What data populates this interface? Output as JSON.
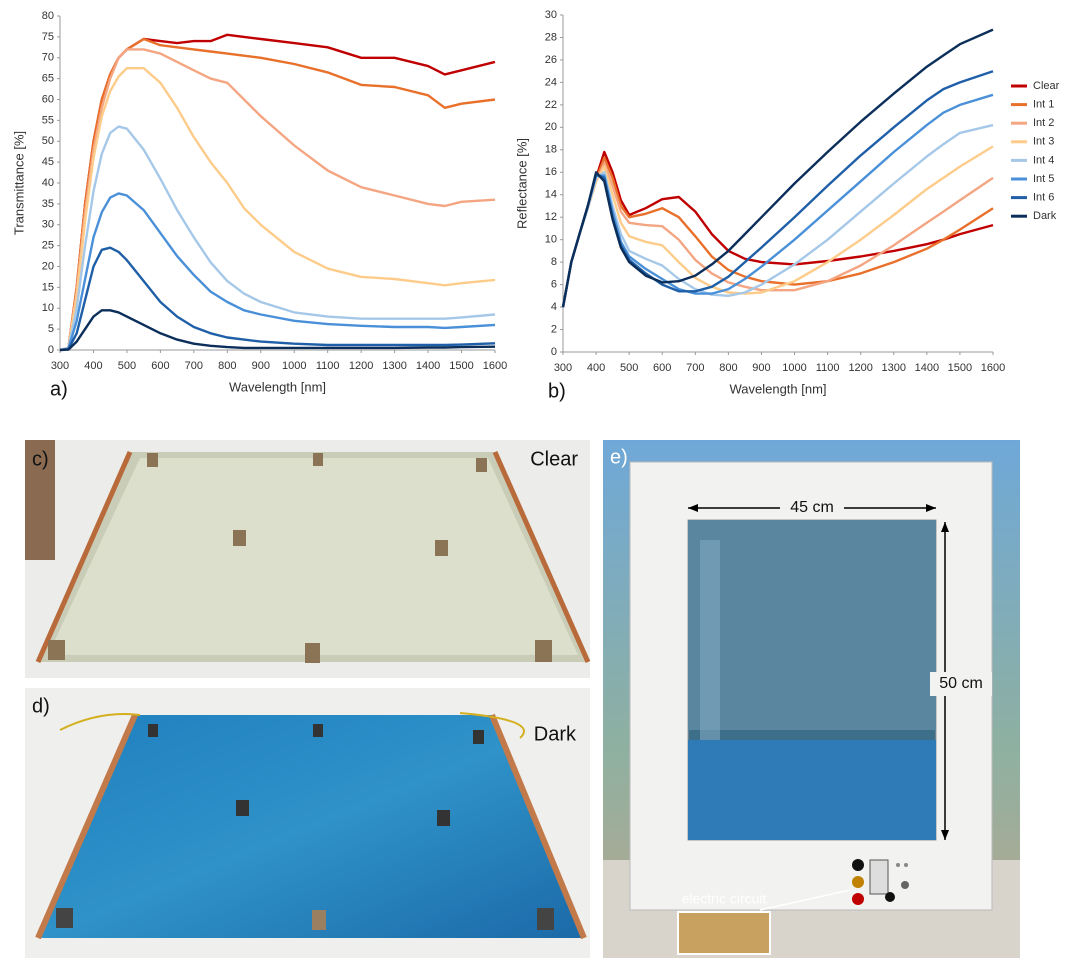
{
  "chart_data": [
    {
      "type": "line",
      "label": "a)",
      "ylabel": "Transmittance [%]",
      "xlabel": "Wavelength [nm]",
      "x": [
        300,
        325,
        350,
        375,
        400,
        425,
        450,
        475,
        500,
        550,
        600,
        650,
        700,
        750,
        800,
        850,
        900,
        1000,
        1100,
        1200,
        1300,
        1400,
        1450,
        1500,
        1600
      ],
      "xlim": [
        300,
        1600
      ],
      "xticks": [
        300,
        400,
        500,
        600,
        700,
        800,
        900,
        1000,
        1100,
        1200,
        1300,
        1400,
        1500,
        1600
      ],
      "ylim": [
        0,
        80
      ],
      "yticks": [
        0,
        5,
        10,
        15,
        20,
        25,
        30,
        35,
        40,
        45,
        50,
        55,
        60,
        65,
        70,
        75,
        80
      ],
      "grid": false,
      "series": [
        {
          "color": "#c00000",
          "values": [
            0,
            0.5,
            15,
            35,
            50,
            60,
            66,
            70,
            72,
            74.5,
            74,
            73.5,
            74,
            74,
            75.5,
            75,
            74.5,
            73.5,
            72.5,
            70,
            70,
            68,
            66,
            67,
            69
          ]
        },
        {
          "color": "#e8702a",
          "values": [
            0,
            0.5,
            15,
            35,
            50,
            60,
            66,
            70,
            72,
            74.5,
            73,
            72.5,
            72,
            71.5,
            71,
            70.5,
            70,
            68.5,
            66.5,
            63.5,
            63,
            61,
            58,
            59,
            60
          ]
        },
        {
          "color": "#f4a582",
          "values": [
            0,
            0.5,
            14,
            33,
            48,
            58,
            65,
            70,
            72,
            72,
            71,
            69,
            67,
            65,
            64,
            60,
            56,
            49,
            43,
            39,
            37,
            35,
            34.5,
            35.5,
            36
          ]
        },
        {
          "color": "#fdcc8a",
          "values": [
            0,
            0.5,
            13,
            31,
            46,
            56,
            62,
            65.5,
            67.5,
            67.5,
            64,
            58,
            51,
            45,
            40,
            34,
            30,
            23.5,
            19.5,
            17.5,
            17,
            16,
            15.5,
            16,
            16.8
          ]
        },
        {
          "color": "#a6c8e8",
          "values": [
            0,
            0.5,
            10,
            25,
            38,
            47,
            52,
            53.5,
            53,
            48,
            41,
            33.5,
            27,
            21,
            16.5,
            13.5,
            11.5,
            9,
            8,
            7.5,
            7.5,
            7.5,
            7.5,
            7.8,
            8.5
          ]
        },
        {
          "color": "#4a90d9",
          "values": [
            0,
            0.3,
            7,
            17,
            27,
            33,
            36.5,
            37.5,
            37,
            33.5,
            28,
            22.5,
            18,
            14,
            11.5,
            9.5,
            8.5,
            7,
            6.2,
            5.8,
            5.5,
            5.5,
            5.3,
            5.5,
            6
          ]
        },
        {
          "color": "#1f5fa8",
          "values": [
            0,
            0.2,
            4,
            12,
            20,
            24,
            24.5,
            23.5,
            21.5,
            16.5,
            11.5,
            8,
            5.5,
            4,
            3,
            2.5,
            2,
            1.5,
            1.2,
            1.2,
            1.2,
            1.2,
            1.2,
            1.3,
            1.6
          ]
        },
        {
          "color": "#0b2e5a",
          "values": [
            0,
            0.1,
            2,
            5,
            8,
            9.5,
            9.5,
            9,
            8,
            6,
            4,
            2.5,
            1.5,
            1,
            0.7,
            0.5,
            0.5,
            0.5,
            0.5,
            0.5,
            0.5,
            0.6,
            0.6,
            0.7,
            0.8
          ]
        }
      ]
    },
    {
      "type": "line",
      "label": "b)",
      "ylabel": "Reflectance [%]",
      "xlabel": "Wavelength [nm]",
      "legend": "right",
      "x": [
        300,
        325,
        350,
        375,
        400,
        425,
        450,
        475,
        500,
        550,
        600,
        650,
        700,
        750,
        800,
        850,
        900,
        1000,
        1100,
        1200,
        1300,
        1400,
        1450,
        1500,
        1600
      ],
      "xlim": [
        300,
        1600
      ],
      "xticks": [
        300,
        400,
        500,
        600,
        700,
        800,
        900,
        1000,
        1100,
        1200,
        1300,
        1400,
        1500,
        1600
      ],
      "ylim": [
        0,
        30
      ],
      "yticks": [
        0,
        2,
        4,
        6,
        8,
        10,
        12,
        14,
        16,
        18,
        20,
        22,
        24,
        26,
        28,
        30
      ],
      "grid": false,
      "series": [
        {
          "name": "Clear",
          "color": "#c00000",
          "values": [
            4,
            8,
            10.5,
            13,
            15.5,
            17.8,
            16,
            13.5,
            12.2,
            12.8,
            13.6,
            13.8,
            12.5,
            10.5,
            9,
            8.3,
            8,
            7.8,
            8.1,
            8.5,
            9,
            9.6,
            10,
            10.5,
            11.3
          ]
        },
        {
          "name": "Int 1",
          "color": "#e8702a",
          "values": [
            4,
            8,
            10.5,
            13,
            15.3,
            17.3,
            15.5,
            13,
            12,
            12.3,
            12.8,
            12,
            10.3,
            8.5,
            7.3,
            6.7,
            6.3,
            6,
            6.3,
            7,
            8,
            9.2,
            10,
            10.9,
            12.8
          ]
        },
        {
          "name": "Int 2",
          "color": "#f4a582",
          "values": [
            4,
            8,
            10.5,
            12.8,
            15.2,
            16.8,
            14.8,
            12.5,
            11.5,
            11.3,
            11.2,
            10,
            8.2,
            7,
            6.2,
            5.8,
            5.5,
            5.5,
            6.3,
            7.7,
            9.5,
            11.5,
            12.5,
            13.5,
            15.5
          ]
        },
        {
          "name": "Int 3",
          "color": "#fdcc8a",
          "values": [
            4,
            8,
            10.5,
            12.8,
            15.2,
            16.5,
            14,
            11.5,
            10.3,
            9.8,
            9.5,
            8,
            6.6,
            5.8,
            5.3,
            5.2,
            5.3,
            6.3,
            8,
            10,
            12.2,
            14.5,
            15.5,
            16.5,
            18.3
          ]
        },
        {
          "name": "Int 4",
          "color": "#a6c8e8",
          "values": [
            4,
            8,
            10.5,
            12.8,
            15.5,
            16,
            13,
            10.5,
            9,
            8.3,
            7.7,
            6.5,
            5.6,
            5.1,
            5,
            5.3,
            6,
            7.8,
            10,
            12.5,
            15,
            17.4,
            18.5,
            19.5,
            20.2
          ]
        },
        {
          "name": "Int 5",
          "color": "#4a90d9",
          "values": [
            4,
            8,
            10.5,
            13,
            15.7,
            15.7,
            12.5,
            9.8,
            8.5,
            7.4,
            6.5,
            5.6,
            5.2,
            5.2,
            5.6,
            6.5,
            7.6,
            10,
            12.6,
            15.2,
            17.8,
            20.2,
            21.3,
            22,
            22.9
          ]
        },
        {
          "name": "Int 6",
          "color": "#1f5fa8",
          "values": [
            4,
            8,
            10.5,
            13,
            15.8,
            15.5,
            12,
            9.5,
            8.2,
            7,
            6,
            5.4,
            5.4,
            5.8,
            6.7,
            8,
            9.3,
            12,
            14.8,
            17.5,
            20,
            22.4,
            23.4,
            24,
            25
          ]
        },
        {
          "name": "Dark",
          "color": "#0b2e5a",
          "values": [
            4,
            8,
            10.5,
            13,
            16,
            15.2,
            11.8,
            9.3,
            8,
            6.8,
            6.2,
            6.3,
            6.8,
            7.8,
            9,
            10.5,
            12,
            15,
            17.8,
            20.5,
            23,
            25.4,
            26.4,
            27.4,
            28.7
          ]
        }
      ]
    }
  ],
  "panels": [
    {
      "label": "c)",
      "state": "Clear"
    },
    {
      "label": "d)",
      "state": "Dark"
    },
    {
      "label": "e)",
      "width": "45 cm",
      "height": "50 cm",
      "callout": "electric circuit"
    }
  ]
}
